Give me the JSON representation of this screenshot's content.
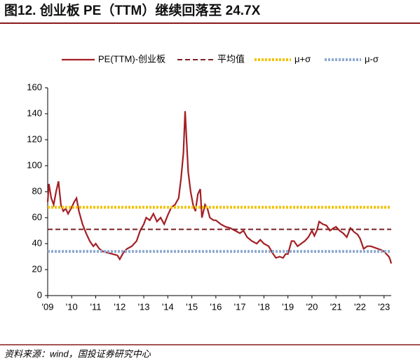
{
  "chart_data": {
    "type": "line",
    "title": "图12. 创业板 PE（TTM）继续回落至 24.7X",
    "source": "资料来源：wind，国投证券研究中心",
    "x": [
      2009.0,
      2009.05,
      2009.15,
      2009.25,
      2009.35,
      2009.45,
      2009.55,
      2009.65,
      2009.75,
      2009.85,
      2010.0,
      2010.1,
      2010.2,
      2010.3,
      2010.45,
      2010.6,
      2010.75,
      2010.9,
      2011.0,
      2011.15,
      2011.3,
      2011.5,
      2011.7,
      2011.9,
      2012.0,
      2012.15,
      2012.3,
      2012.5,
      2012.7,
      2012.85,
      2013.0,
      2013.1,
      2013.25,
      2013.4,
      2013.55,
      2013.7,
      2013.85,
      2014.0,
      2014.15,
      2014.3,
      2014.45,
      2014.55,
      2014.65,
      2014.72,
      2014.78,
      2014.85,
      2014.95,
      2015.05,
      2015.15,
      2015.25,
      2015.35,
      2015.42,
      2015.55,
      2015.65,
      2015.75,
      2015.9,
      2016.0,
      2016.2,
      2016.4,
      2016.6,
      2016.8,
      2017.0,
      2017.15,
      2017.3,
      2017.5,
      2017.7,
      2017.85,
      2018.0,
      2018.2,
      2018.35,
      2018.5,
      2018.65,
      2018.8,
      2018.9,
      2019.0,
      2019.15,
      2019.25,
      2019.4,
      2019.55,
      2019.7,
      2019.85,
      2020.0,
      2020.1,
      2020.2,
      2020.3,
      2020.45,
      2020.6,
      2020.75,
      2020.9,
      2021.0,
      2021.15,
      2021.3,
      2021.45,
      2021.6,
      2021.75,
      2021.9,
      2022.0,
      2022.15,
      2022.3,
      2022.45,
      2022.6,
      2022.75,
      2022.9,
      2023.0,
      2023.1,
      2023.2,
      2023.25,
      2023.3
    ],
    "series": [
      {
        "name": "PE(TTM)-创业板",
        "color": "#a31f24",
        "style": "solid",
        "values": [
          72,
          86,
          75,
          70,
          80,
          88,
          70,
          65,
          67,
          63,
          68,
          72,
          75,
          65,
          55,
          48,
          42,
          38,
          40,
          36,
          34,
          33,
          32,
          31,
          28,
          33,
          36,
          38,
          42,
          50,
          55,
          60,
          58,
          63,
          57,
          60,
          55,
          62,
          68,
          70,
          75,
          90,
          110,
          142,
          120,
          95,
          80,
          70,
          65,
          78,
          82,
          60,
          70,
          67,
          60,
          58,
          58,
          55,
          53,
          52,
          50,
          48,
          50,
          45,
          42,
          40,
          43,
          40,
          38,
          33,
          29,
          30,
          29,
          32,
          32,
          42,
          42,
          38,
          40,
          42,
          45,
          50,
          46,
          50,
          57,
          55,
          54,
          50,
          52,
          53,
          50,
          48,
          45,
          52,
          49,
          47,
          44,
          36,
          38,
          38,
          37,
          36,
          35,
          34,
          32,
          30,
          28,
          24.7
        ]
      },
      {
        "name": "平均值",
        "color": "#7b2226",
        "style": "dashed",
        "value": 51
      },
      {
        "name": "μ+σ",
        "color": "#f2c200",
        "style": "dotted",
        "value": 68
      },
      {
        "name": "μ-σ",
        "color": "#8fa9d0",
        "style": "dotted",
        "value": 34
      }
    ],
    "xlim": [
      2009,
      2023.3
    ],
    "xticks": [
      {
        "value": 2009,
        "label": "'09"
      },
      {
        "value": 2010,
        "label": "'10"
      },
      {
        "value": 2011,
        "label": "'11"
      },
      {
        "value": 2012,
        "label": "'12"
      },
      {
        "value": 2013,
        "label": "'13"
      },
      {
        "value": 2014,
        "label": "'14"
      },
      {
        "value": 2015,
        "label": "'15"
      },
      {
        "value": 2016,
        "label": "'16"
      },
      {
        "value": 2017,
        "label": "'17"
      },
      {
        "value": 2018,
        "label": "'18"
      },
      {
        "value": 2019,
        "label": "'19"
      },
      {
        "value": 2020,
        "label": "'20"
      },
      {
        "value": 2021,
        "label": "'21"
      },
      {
        "value": 2022,
        "label": "'22"
      },
      {
        "value": 2023,
        "label": "'23"
      }
    ],
    "ylim": [
      0,
      160
    ],
    "yticks": [
      0,
      20,
      40,
      60,
      80,
      100,
      120,
      140,
      160
    ],
    "legend": "top"
  }
}
